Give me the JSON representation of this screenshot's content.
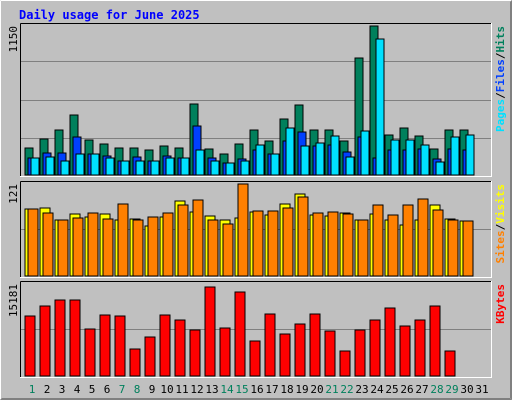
{
  "title": "Daily usage for June 2025",
  "colors": {
    "background": "#C0C0C0",
    "title": "#0000FF",
    "hits": "#00805C",
    "files": "#0040FF",
    "pages": "#00E0FF",
    "visits": "#FFFF00",
    "sites": "#FF8000",
    "kbytes": "#FF0000",
    "weekend_day": "#00805C",
    "weekday": "#000000"
  },
  "chart_data": [
    {
      "type": "bar",
      "panel": "hits-files-pages",
      "ymax_label": "1150",
      "ymax": 1150,
      "ylabel_parts": [
        "Pages",
        "/",
        "Files",
        "/",
        "Hits"
      ],
      "categories": [
        "1",
        "2",
        "3",
        "4",
        "5",
        "6",
        "7",
        "8",
        "9",
        "10",
        "11",
        "12",
        "13",
        "14",
        "15",
        "16",
        "17",
        "18",
        "19",
        "20",
        "21",
        "22",
        "23",
        "24",
        "25",
        "26",
        "27",
        "28",
        "29",
        "30",
        "31"
      ],
      "series": [
        {
          "name": "Hits",
          "values": [
            210,
            280,
            350,
            460,
            270,
            240,
            210,
            210,
            190,
            220,
            210,
            550,
            200,
            160,
            240,
            350,
            260,
            430,
            540,
            350,
            350,
            260,
            900,
            1150,
            310,
            360,
            300,
            200,
            350,
            350,
            0
          ]
        },
        {
          "name": "Files",
          "values": [
            130,
            170,
            170,
            290,
            160,
            150,
            110,
            140,
            110,
            150,
            130,
            380,
            130,
            90,
            120,
            190,
            160,
            260,
            330,
            220,
            230,
            180,
            290,
            130,
            190,
            190,
            200,
            120,
            200,
            190,
            0
          ]
        },
        {
          "name": "Pages",
          "values": [
            130,
            140,
            110,
            160,
            160,
            130,
            110,
            110,
            110,
            130,
            130,
            190,
            110,
            90,
            110,
            230,
            160,
            360,
            220,
            250,
            300,
            140,
            340,
            1050,
            270,
            270,
            230,
            100,
            290,
            310,
            0
          ]
        }
      ]
    },
    {
      "type": "bar",
      "panel": "visits-sites",
      "ymax_label": "121",
      "ymax": 121,
      "ylabel_parts": [
        "Sites",
        "/",
        "Visits"
      ],
      "categories": [
        "1",
        "2",
        "3",
        "4",
        "5",
        "6",
        "7",
        "8",
        "9",
        "10",
        "11",
        "12",
        "13",
        "14",
        "15",
        "16",
        "17",
        "18",
        "19",
        "20",
        "21",
        "22",
        "23",
        "24",
        "25",
        "26",
        "27",
        "28",
        "29",
        "30",
        "31"
      ],
      "series": [
        {
          "name": "Visits",
          "values": [
            88,
            89,
            74,
            81,
            77,
            81,
            74,
            75,
            66,
            77,
            98,
            84,
            79,
            73,
            76,
            84,
            80,
            95,
            108,
            80,
            79,
            83,
            74,
            81,
            73,
            67,
            74,
            94,
            75,
            72,
            0
          ]
        },
        {
          "name": "Sites",
          "values": [
            88,
            83,
            74,
            76,
            83,
            75,
            95,
            74,
            77,
            83,
            94,
            100,
            73,
            69,
            121,
            86,
            86,
            89,
            104,
            83,
            84,
            81,
            74,
            94,
            80,
            94,
            101,
            87,
            73,
            72,
            0
          ]
        }
      ]
    },
    {
      "type": "bar",
      "panel": "kbytes",
      "ymax_label": "15181",
      "ymax": 15181,
      "ylabel_parts": [
        "KBytes"
      ],
      "categories": [
        "1",
        "2",
        "3",
        "4",
        "5",
        "6",
        "7",
        "8",
        "9",
        "10",
        "11",
        "12",
        "13",
        "14",
        "15",
        "16",
        "17",
        "18",
        "19",
        "20",
        "21",
        "22",
        "23",
        "24",
        "25",
        "26",
        "27",
        "28",
        "29",
        "30",
        "31"
      ],
      "series": [
        {
          "name": "KBytes",
          "values": [
            9900,
            11600,
            12500,
            12500,
            7800,
            10000,
            9900,
            4500,
            6500,
            10100,
            9300,
            7600,
            14700,
            7900,
            13800,
            5800,
            10200,
            6900,
            8600,
            10200,
            7500,
            4200,
            7600,
            9200,
            11200,
            8200,
            9300,
            11600,
            4200,
            0,
            0
          ]
        }
      ]
    }
  ]
}
